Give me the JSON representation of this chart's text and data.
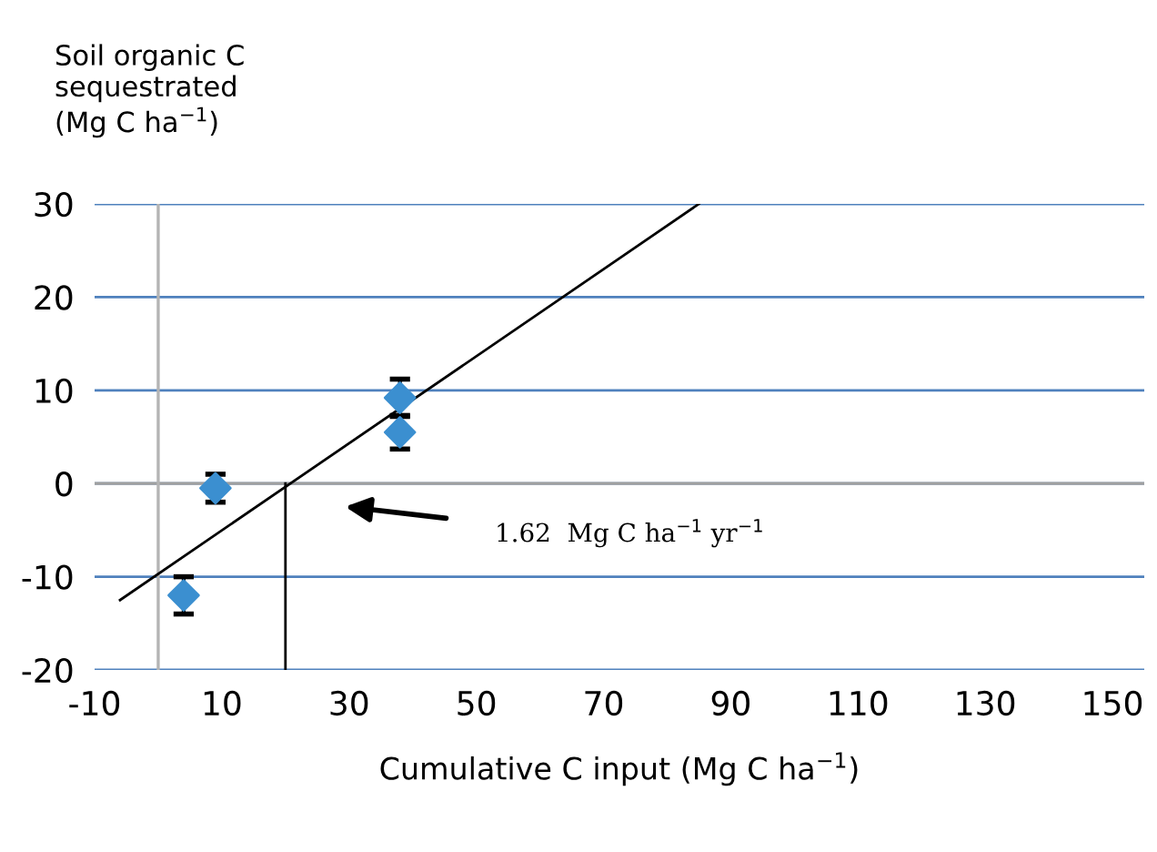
{
  "chart_data": {
    "type": "scatter",
    "ylabel": "Soil organic C\nsequestrated\n(Mg C ha$^{−1}$)",
    "xlabel": "Cumulative C input (Mg C ha$^{−1}$)",
    "x": [
      4,
      9,
      38,
      38
    ],
    "values": [
      -12,
      -0.5,
      9.2,
      5.5
    ],
    "errors": [
      2,
      1.5,
      2,
      1.8
    ],
    "color": "#3b8fd0",
    "marker": "diamond",
    "series": [
      {
        "name": null,
        "type": "line",
        "color": "#000000",
        "marker": "none",
        "x": [
          -6,
          85
        ],
        "values": [
          -12.5,
          30
        ]
      },
      {
        "name": null,
        "type": "line",
        "color": "#000000",
        "marker": "none",
        "x": [
          20,
          20
        ],
        "values": [
          -20,
          0
        ]
      }
    ],
    "xlim": [
      -10,
      155
    ],
    "xticks": [
      -10,
      10,
      30,
      50,
      70,
      90,
      110,
      130,
      150
    ],
    "ylim": [
      -20,
      30
    ],
    "yticks": [
      -20,
      -10,
      0,
      10,
      20,
      30
    ],
    "grid": "y",
    "legend": false,
    "ref_lines": [
      {
        "axis": "y",
        "value": 0,
        "color": "#a0a0a0"
      },
      {
        "axis": "x",
        "value": 0,
        "color": "#b4b4b4"
      }
    ],
    "annotations": [
      "1.62  Mg C ha$^{−1}$ yr$^{−1}$"
    ]
  }
}
